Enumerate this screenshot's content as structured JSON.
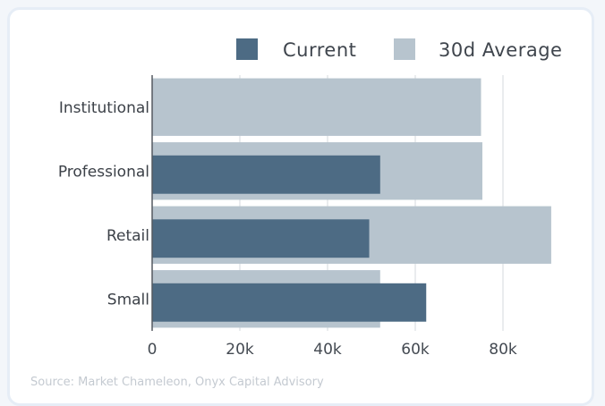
{
  "chart_data": {
    "type": "bar",
    "orientation": "horizontal",
    "categories": [
      "Institutional",
      "Professional",
      "Retail",
      "Small"
    ],
    "series": [
      {
        "name": "Current",
        "values": [
          0,
          52000,
          49500,
          62500
        ],
        "color": "#4d6b84"
      },
      {
        "name": "30d Average",
        "values": [
          75000,
          75300,
          91000,
          52000
        ],
        "color": "#b7c4ce"
      }
    ],
    "xlim": [
      0,
      100000
    ],
    "xticks": [
      {
        "value": 0,
        "label": "0"
      },
      {
        "value": 20000,
        "label": "20k"
      },
      {
        "value": 40000,
        "label": "40k"
      },
      {
        "value": 60000,
        "label": "60k"
      },
      {
        "value": 80000,
        "label": "80k"
      }
    ],
    "grid": true,
    "legend_position": "top-right"
  },
  "footer": {
    "source": "Source: Market Chameleon, Onyx Capital Advisory"
  }
}
